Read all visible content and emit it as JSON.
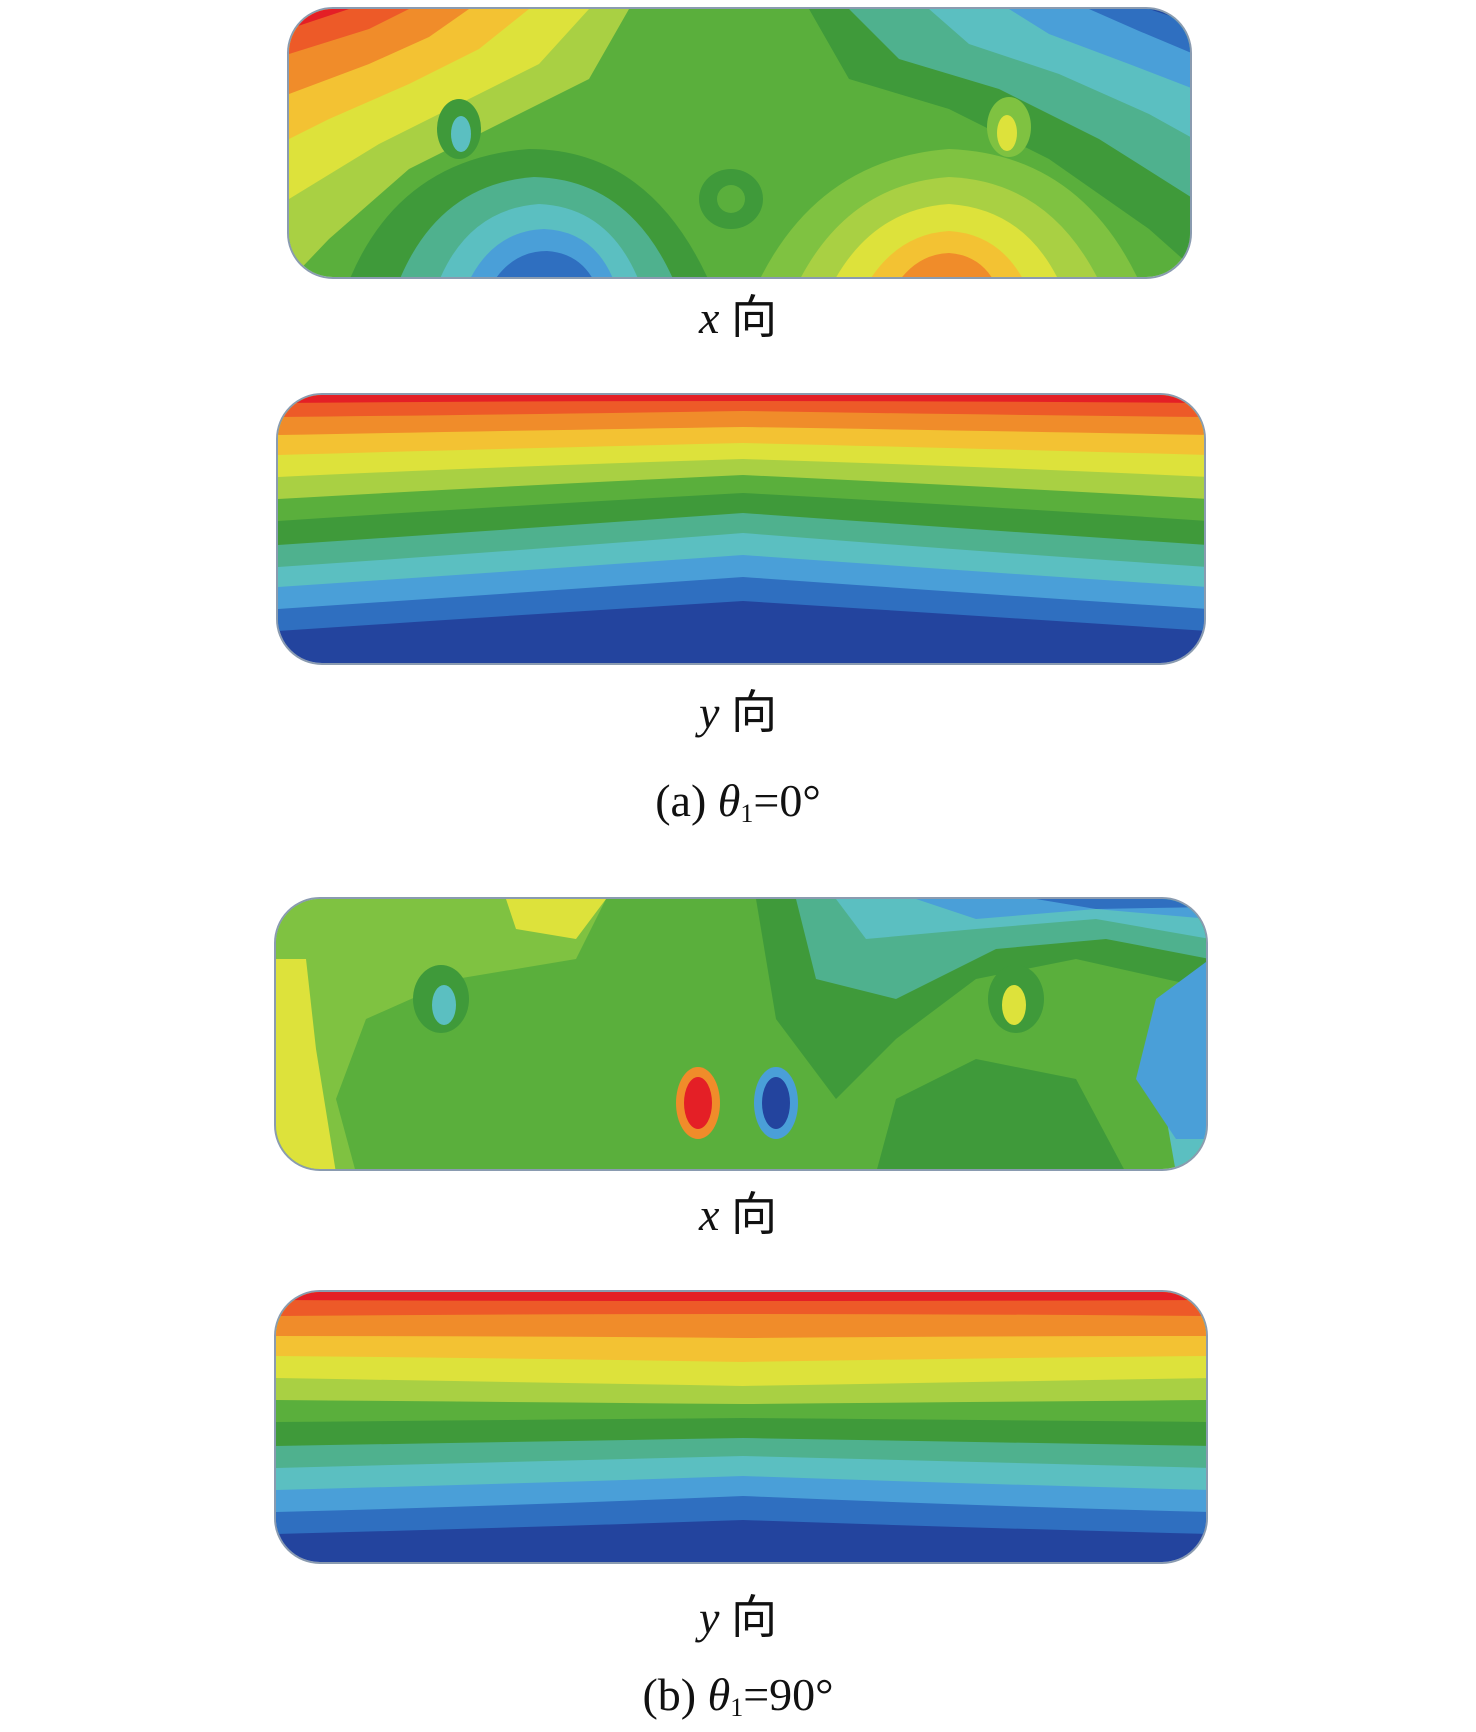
{
  "colors": {
    "red": "#e41f26",
    "orange_red": "#ed5a28",
    "orange": "#f08c2a",
    "yellow_orange": "#f3c233",
    "yellow": "#dde23b",
    "yellow_green": "#a9d043",
    "light_green": "#7fc241",
    "green": "#5aaf3c",
    "dark_green": "#3f9a3a",
    "teal_green": "#4fb18e",
    "teal": "#5bbfc1",
    "light_blue": "#4a9fd8",
    "blue": "#2f6fc0",
    "dark_blue": "#23449e"
  },
  "panels": [
    {
      "axis_symbol": "x",
      "axis_suffix": "向"
    },
    {
      "axis_symbol": "y",
      "axis_suffix": "向"
    },
    {
      "axis_symbol": "x",
      "axis_suffix": "向"
    },
    {
      "axis_symbol": "y",
      "axis_suffix": "向"
    }
  ],
  "captions": {
    "a": {
      "prefix": "(a) ",
      "symbol": "θ",
      "subscript": "1",
      "value": "=0°"
    },
    "b": {
      "prefix": "(b) ",
      "symbol": "θ",
      "subscript": "1",
      "value": "=90°"
    }
  }
}
